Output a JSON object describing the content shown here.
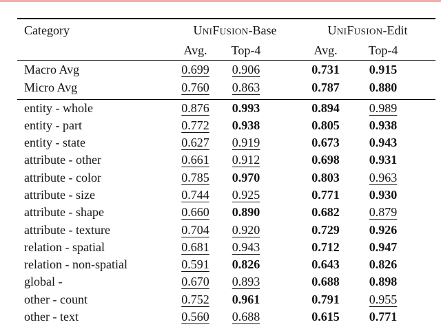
{
  "page": {
    "accent_bar_color": "#f3aeab",
    "background_color": "#ffffff",
    "text_color": "#141414",
    "rule_color": "#000000"
  },
  "table": {
    "header": {
      "category_label": "Category",
      "groups": [
        {
          "name": "UniFusion",
          "suffix": "-Base"
        },
        {
          "name": "UniFusion",
          "suffix": "-Edit"
        }
      ],
      "subcolumns": [
        "Avg.",
        "Top-4"
      ]
    },
    "summary_rows": [
      {
        "category": "Macro Avg",
        "values": [
          "0.699",
          "0.906",
          "0.731",
          "0.915"
        ],
        "styles": [
          "underline",
          "underline",
          "bold",
          "bold"
        ]
      },
      {
        "category": "Micro Avg",
        "values": [
          "0.760",
          "0.863",
          "0.787",
          "0.880"
        ],
        "styles": [
          "underline",
          "underline",
          "bold",
          "bold"
        ]
      }
    ],
    "body_rows": [
      {
        "category": "entity - whole",
        "values": [
          "0.876",
          "0.993",
          "0.894",
          "0.989"
        ],
        "styles": [
          "underline",
          "bold",
          "bold",
          "underline"
        ]
      },
      {
        "category": "entity - part",
        "values": [
          "0.772",
          "0.938",
          "0.805",
          "0.938"
        ],
        "styles": [
          "underline",
          "bold",
          "bold",
          "bold"
        ]
      },
      {
        "category": "entity - state",
        "values": [
          "0.627",
          "0.919",
          "0.673",
          "0.943"
        ],
        "styles": [
          "underline",
          "underline",
          "bold",
          "bold"
        ]
      },
      {
        "category": "attribute - other",
        "values": [
          "0.661",
          "0.912",
          "0.698",
          "0.931"
        ],
        "styles": [
          "underline",
          "underline",
          "bold",
          "bold"
        ]
      },
      {
        "category": "attribute - color",
        "values": [
          "0.785",
          "0.970",
          "0.803",
          "0.963"
        ],
        "styles": [
          "underline",
          "bold",
          "bold",
          "underline"
        ]
      },
      {
        "category": "attribute - size",
        "values": [
          "0.744",
          "0.925",
          "0.771",
          "0.930"
        ],
        "styles": [
          "underline",
          "underline",
          "bold",
          "bold"
        ]
      },
      {
        "category": "attribute - shape",
        "values": [
          "0.660",
          "0.890",
          "0.682",
          "0.879"
        ],
        "styles": [
          "underline",
          "bold",
          "bold",
          "underline"
        ]
      },
      {
        "category": "attribute - texture",
        "values": [
          "0.704",
          "0.920",
          "0.729",
          "0.926"
        ],
        "styles": [
          "underline",
          "underline",
          "bold",
          "bold"
        ]
      },
      {
        "category": "relation - spatial",
        "values": [
          "0.681",
          "0.943",
          "0.712",
          "0.947"
        ],
        "styles": [
          "underline",
          "underline",
          "bold",
          "bold"
        ]
      },
      {
        "category": "relation - non-spatial",
        "values": [
          "0.591",
          "0.826",
          "0.643",
          "0.826"
        ],
        "styles": [
          "underline",
          "bold",
          "bold",
          "bold"
        ]
      },
      {
        "category": "global -",
        "values": [
          "0.670",
          "0.893",
          "0.688",
          "0.898"
        ],
        "styles": [
          "underline",
          "underline",
          "bold",
          "bold"
        ]
      },
      {
        "category": "other - count",
        "values": [
          "0.752",
          "0.961",
          "0.791",
          "0.955"
        ],
        "styles": [
          "underline",
          "bold",
          "bold",
          "underline"
        ]
      },
      {
        "category": "other - text",
        "values": [
          "0.560",
          "0.688",
          "0.615",
          "0.771"
        ],
        "styles": [
          "underline",
          "underline",
          "bold",
          "bold"
        ]
      }
    ]
  }
}
